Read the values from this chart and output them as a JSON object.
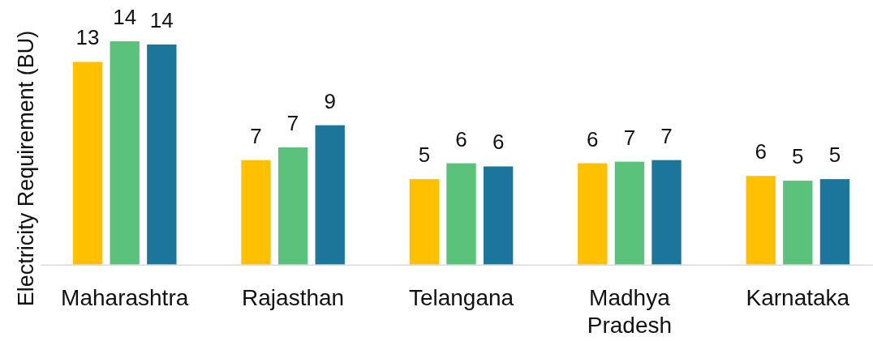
{
  "chart_data": {
    "type": "bar",
    "ylabel": "Electricity Requirement (BU)",
    "categories": [
      "Maharashtra",
      "Rajasthan",
      "Telangana",
      "Madhya Pradesh",
      "Karnataka"
    ],
    "series": [
      {
        "color": "#ffc000",
        "values": [
          12.8,
          6.6,
          5.4,
          6.4,
          5.6
        ],
        "value_labels": [
          "13",
          "7",
          "5",
          "6",
          "6"
        ]
      },
      {
        "color": "#5bc27b",
        "values": [
          14.1,
          7.4,
          6.4,
          6.5,
          5.3
        ],
        "value_labels": [
          "14",
          "7",
          "6",
          "7",
          "5"
        ]
      },
      {
        "color": "#1c769c",
        "values": [
          13.9,
          8.8,
          6.2,
          6.6,
          5.4
        ],
        "value_labels": [
          "14",
          "9",
          "6",
          "7",
          "5"
        ]
      }
    ]
  }
}
